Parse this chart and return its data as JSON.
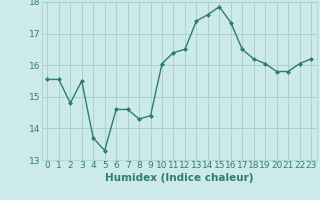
{
  "x": [
    0,
    1,
    2,
    3,
    4,
    5,
    6,
    7,
    8,
    9,
    10,
    11,
    12,
    13,
    14,
    15,
    16,
    17,
    18,
    19,
    20,
    21,
    22,
    23
  ],
  "y": [
    15.55,
    15.55,
    14.8,
    15.5,
    13.7,
    13.3,
    14.6,
    14.6,
    14.3,
    14.4,
    16.05,
    16.4,
    16.5,
    17.4,
    17.6,
    17.85,
    17.35,
    16.5,
    16.2,
    16.05,
    15.8,
    15.8,
    16.05,
    16.2
  ],
  "line_color": "#2e7d6e",
  "marker": "D",
  "marker_size": 2.0,
  "bg_color": "#cceaea",
  "grid_color": "#aacccc",
  "xlabel": "Humidex (Indice chaleur)",
  "ylim": [
    13,
    18
  ],
  "xlim_min": -0.5,
  "xlim_max": 23.5,
  "yticks": [
    13,
    14,
    15,
    16,
    17,
    18
  ],
  "xticks": [
    0,
    1,
    2,
    3,
    4,
    5,
    6,
    7,
    8,
    9,
    10,
    11,
    12,
    13,
    14,
    15,
    16,
    17,
    18,
    19,
    20,
    21,
    22,
    23
  ],
  "tick_fontsize": 6.5,
  "label_fontsize": 7.5,
  "line_width": 1.0,
  "tick_color": "#2e7d6e"
}
